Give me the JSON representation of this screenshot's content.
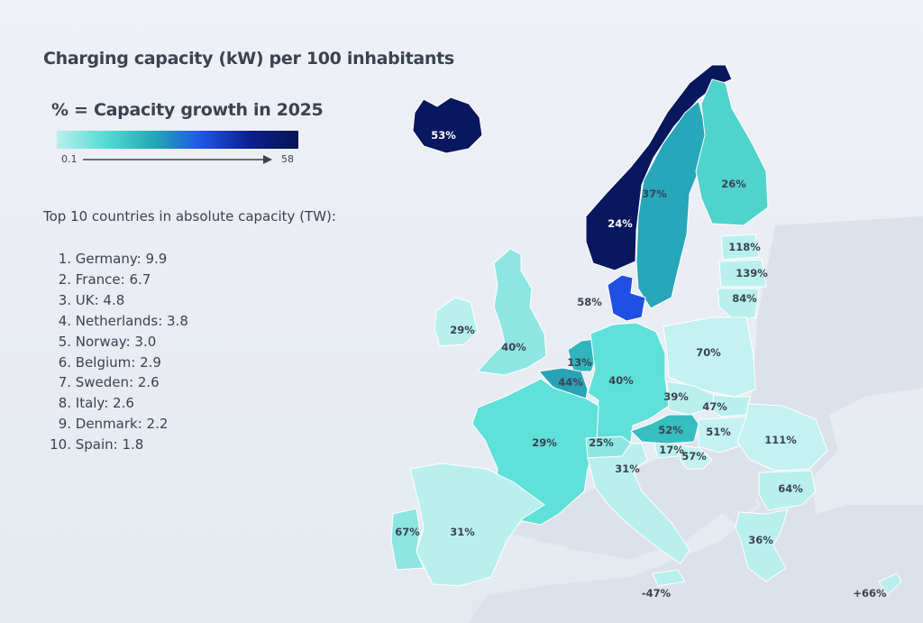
{
  "title": "Charging capacity (kW) per 100 inhabitants",
  "legend": {
    "subtitle": "% = Capacity growth in 2025",
    "min": "0.1",
    "max": "58",
    "gradient_colors": [
      "#b8f0ec",
      "#56dcd4",
      "#23a9b5",
      "#1f55e6",
      "#0a1f8f",
      "#061552"
    ]
  },
  "top_list": {
    "title": "Top 10 countries in absolute capacity (TW):",
    "items": [
      {
        "num": "1.",
        "text": "Germany: 9.9"
      },
      {
        "num": "2.",
        "text": "France: 6.7"
      },
      {
        "num": "3.",
        "text": "UK: 4.8"
      },
      {
        "num": "4.",
        "text": "Netherlands: 3.8"
      },
      {
        "num": "5.",
        "text": "Norway: 3.0"
      },
      {
        "num": "6.",
        "text": "Belgium: 2.9"
      },
      {
        "num": "7.",
        "text": "Sweden: 2.6"
      },
      {
        "num": "8.",
        "text": "Italy: 2.6"
      },
      {
        "num": "9.",
        "text": "Denmark: 2.2"
      },
      {
        "num": "10.",
        "text": "Spain: 1.8"
      }
    ]
  },
  "map": {
    "non_member_color": "#dde2ea",
    "regions": [
      {
        "label": "53%",
        "color": "#08175e"
      },
      {
        "label": "24%",
        "color": "#08175e"
      },
      {
        "label": "37%",
        "color": "#27a7b9"
      },
      {
        "label": "26%",
        "color": "#4fd3cc"
      },
      {
        "label": "118%",
        "color": "#b9f0ee"
      },
      {
        "label": "139%",
        "color": "#b9f0ee"
      },
      {
        "label": "84%",
        "color": "#b9f0ee"
      },
      {
        "label": "58%",
        "color": "#1f4fe3"
      },
      {
        "label": "29%",
        "color": "#b9f0ee"
      },
      {
        "label": "40%",
        "color": "#8ee6e2"
      },
      {
        "label": "13%",
        "color": "#2fb6bd"
      },
      {
        "label": "44%",
        "color": "#2aa2b5"
      },
      {
        "label": "40%",
        "color": "#5fe0d8"
      },
      {
        "label": "70%",
        "color": "#c3f2f0"
      },
      {
        "label": "39%",
        "color": "#b9f0ee"
      },
      {
        "label": "47%",
        "color": "#b9f0ee"
      },
      {
        "label": "52%",
        "color": "#36bec0"
      },
      {
        "label": "51%",
        "color": "#c3f2f0"
      },
      {
        "label": "111%",
        "color": "#c3f2f0"
      },
      {
        "label": "64%",
        "color": "#b9f0ee"
      },
      {
        "label": "36%",
        "color": "#b9f0ee"
      },
      {
        "label": "29%",
        "color": "#5fe0d8"
      },
      {
        "label": "25%",
        "color": "#8ee6e2"
      },
      {
        "label": "31%",
        "color": "#b9f0ee"
      },
      {
        "label": "17%",
        "color": "#b9f0ee"
      },
      {
        "label": "57%",
        "color": "#c3f2f0"
      },
      {
        "label": "31%",
        "color": "#b9f0ee"
      },
      {
        "label": "67%",
        "color": "#8ee6e2"
      },
      {
        "label": "-47%",
        "color": "#b9f0ee"
      },
      {
        "label": "+66%",
        "color": "#b9f0ee"
      }
    ]
  }
}
